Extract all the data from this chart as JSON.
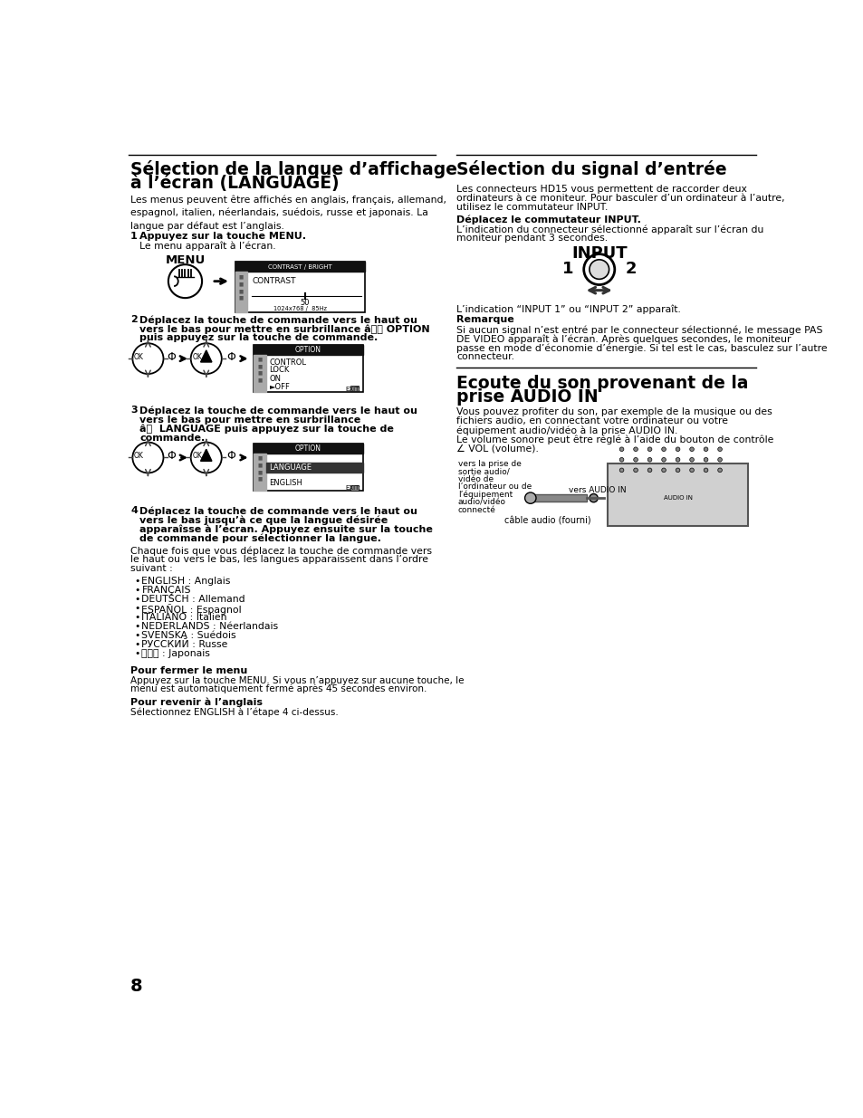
{
  "bg_color": "#ffffff",
  "page_number": "8",
  "left_col": {
    "title1": "Sélection de la langue d’affichage",
    "title2": "à l’écran (LANGUAGE)",
    "intro": "Les menus peuvent être affichés en anglais, français, allemand,\nespagnol, italien, néerlandais, suédois, russe et japonais. La\nlangue par défaut est l’anglais.",
    "step1_bold": "Appuyez sur la touche MENU.",
    "step1_text": "Le menu apparaît à l’écran.",
    "step2_line1": "Déplacez la touche de commande vers le haut ou",
    "step2_line2": "vers le bas pour mettre en surbrillance â OPTION",
    "step2_line3": "puis appuyez sur la touche de commande.",
    "step3_line1": "Déplacez la touche de commande vers le haut ou",
    "step3_line2": "vers le bas pour mettre en surbrillance",
    "step3_line3": "â  LANGUAGE puis appuyez sur la touche de",
    "step3_line4": "commande.",
    "step4_bold1": "Déplacez la touche de commande vers le haut ou",
    "step4_bold2": "vers le bas jusqu’à ce que la langue désirée",
    "step4_bold3": "apparaîsse à l’écran. Appuyez ensuite sur la touche",
    "step4_bold4": "de commande pour sélectionner la langue.",
    "step4_text1": "Chaque fois que vous déplacez la touche de commande vers",
    "step4_text2": "le haut ou vers le bas, les langues apparaissent dans l’ordre",
    "step4_text3": "suivant :",
    "bullet_items": [
      "ENGLISH : Anglais",
      "FRANÇAIS",
      "DEUTSCH : Allemand",
      "ESPAÑOL : Espagnol",
      "ITALIANO : Italien",
      "NEDERLANDS : Néerlandais",
      "SVENSKA : Suédois",
      "РУССКИЙ : Russe",
      "日本語 : Japonais"
    ],
    "close_title": "Pour fermer le menu",
    "close_text1": "Appuyez sur la touche MENU. Si vous n’appuyez sur aucune touche, le",
    "close_text2": "menu est automatiquement fermé après 45 secondes environ.",
    "english_title": "Pour revenir à l’anglais",
    "english_text": "Sélectionnez ENGLISH à l’étape 4 ci-dessus."
  },
  "right_col": {
    "title": "Sélection du signal d’entrée",
    "intro1": "Les connecteurs HD15 vous permettent de raccorder deux",
    "intro2": "ordinateurs à ce moniteur. Pour basculer d’un ordinateur à l’autre,",
    "intro3": "utilisez le commutateur INPUT.",
    "sub_title": "Déplacez le commutateur INPUT.",
    "sub_text1": "L’indication du connecteur sélectionné apparaît sur l’écran du",
    "sub_text2": "moniteur pendant 3 secondes.",
    "input_label": "INPUT",
    "indication": "L’indication “INPUT 1” ou “INPUT 2” apparaît.",
    "remark_title": "Remarque",
    "remark1": "Si aucun signal n’est entré par le connecteur sélectionné, le message PAS",
    "remark2": "DE VIDEO apparaît à l’écran. Après quelques secondes, le moniteur",
    "remark3": "passe en mode d’économie d’énergie. Si tel est le cas, basculez sur l’autre",
    "remark4": "connecteur.",
    "section2_title1": "Ecoute du son provenant de la",
    "section2_title2": "prise AUDIO IN",
    "sec2_p1": "Vous pouvez profiter du son, par exemple de la musique ou des",
    "sec2_p2": "fichiers audio, en connectant votre ordinateur ou votre",
    "sec2_p3": "équipement audio/vidéo à la prise AUDIO IN.",
    "sec2_p4": "Le volume sonore peut être réglé à l’aide du bouton de contrôle",
    "sec2_p5": "∠ VOL (volume).",
    "diag_label1_lines": [
      "vers la prise de",
      "sortie audio/",
      "vidéo de",
      "l’ordinateur ou de",
      "l’équipement",
      "audio/vidéo",
      "connecté"
    ],
    "diag_label2": "vers AUDIO IN",
    "diag_label3": "câble audio (fourni)"
  }
}
